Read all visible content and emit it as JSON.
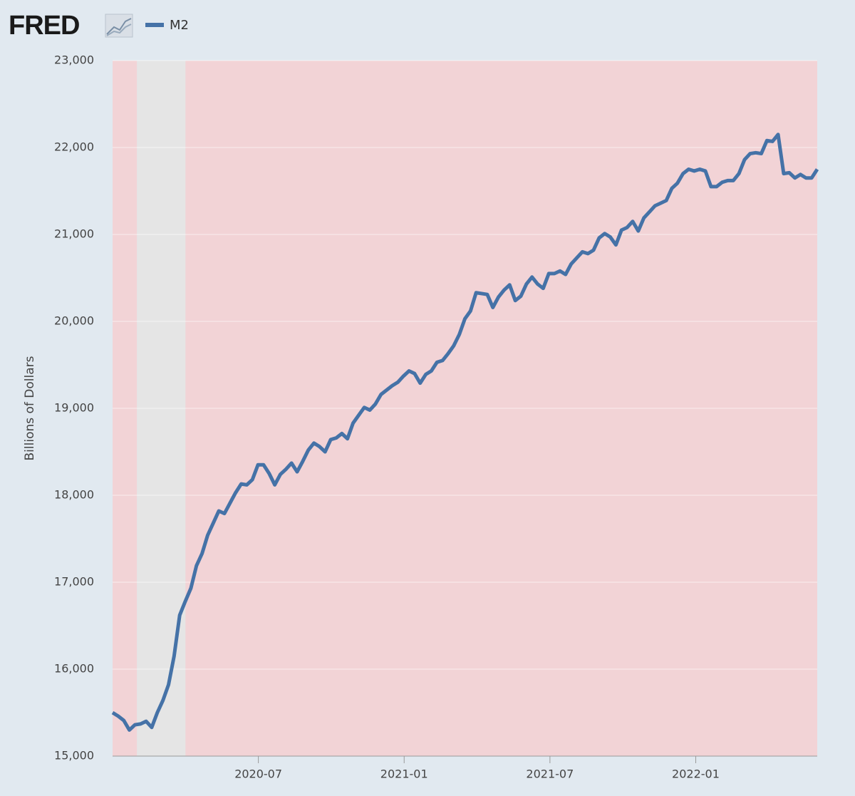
{
  "logo": "FRED",
  "chart_data": {
    "type": "line",
    "y_label": "Billions of Dollars",
    "xlim": [
      "2020-01",
      "2022-06"
    ],
    "xticks": [
      "2020-07",
      "2021-01",
      "2021-07",
      "2022-01"
    ],
    "ylim": [
      15000,
      23000
    ],
    "yticks": [
      {
        "value": 15000,
        "label": "15,000"
      },
      {
        "value": 16000,
        "label": "16,000"
      },
      {
        "value": 17000,
        "label": "17,000"
      },
      {
        "value": 18000,
        "label": "18,000"
      },
      {
        "value": 19000,
        "label": "19,000"
      },
      {
        "value": 20000,
        "label": "20,000"
      },
      {
        "value": 21000,
        "label": "21,000"
      },
      {
        "value": 22000,
        "label": "22,000"
      },
      {
        "value": 23000,
        "label": "23,000"
      }
    ],
    "grid": true,
    "background_color": "#f2d3d6",
    "recessions": [
      {
        "start": "2020-02",
        "end": "2020-04",
        "color": "#e5e5e5"
      }
    ],
    "series": [
      {
        "name": "M2",
        "color": "#4572a7",
        "values": [
          15500,
          15460,
          15410,
          15300,
          15360,
          15370,
          15400,
          15330,
          15500,
          15640,
          15820,
          16150,
          16620,
          16780,
          16930,
          17190,
          17330,
          17540,
          17680,
          17820,
          17790,
          17910,
          18030,
          18130,
          18120,
          18180,
          18350,
          18350,
          18250,
          18120,
          18240,
          18300,
          18370,
          18270,
          18390,
          18520,
          18600,
          18560,
          18500,
          18640,
          18660,
          18710,
          18650,
          18830,
          18920,
          19010,
          18980,
          19050,
          19160,
          19210,
          19260,
          19300,
          19370,
          19430,
          19400,
          19290,
          19390,
          19430,
          19530,
          19550,
          19630,
          19720,
          19850,
          20030,
          20120,
          20330,
          20320,
          20310,
          20160,
          20280,
          20360,
          20420,
          20240,
          20290,
          20430,
          20510,
          20430,
          20380,
          20550,
          20550,
          20580,
          20540,
          20660,
          20730,
          20800,
          20780,
          20820,
          20960,
          21010,
          20970,
          20880,
          21050,
          21080,
          21150,
          21040,
          21190,
          21260,
          21330,
          21360,
          21390,
          21530,
          21590,
          21700,
          21750,
          21730,
          21750,
          21730,
          21550,
          21550,
          21600,
          21620,
          21620,
          21700,
          21860,
          21930,
          21940,
          21930,
          22080,
          22070,
          22150,
          21700,
          21710,
          21650,
          21690,
          21650,
          21650,
          21750
        ]
      }
    ]
  }
}
